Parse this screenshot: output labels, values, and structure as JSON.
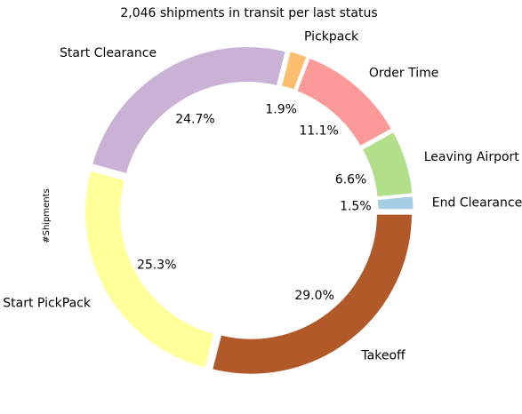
{
  "chart_data": {
    "type": "pie",
    "style": "donut",
    "title": "2,046 shipments in transit per last status",
    "ylabel": "#Shipments",
    "start_angle_deg": 0,
    "direction": "counterclockwise",
    "slices": [
      {
        "label": "End Clearance",
        "percent": 1.5,
        "percent_label": "1.5%",
        "color": "#a6cee3"
      },
      {
        "label": "Leaving Airport",
        "percent": 6.6,
        "percent_label": "6.6%",
        "color": "#b2df8a"
      },
      {
        "label": "Order Time",
        "percent": 11.1,
        "percent_label": "11.1%",
        "color": "#fb9a99"
      },
      {
        "label": "Pickpack",
        "percent": 1.9,
        "percent_label": "1.9%",
        "color": "#fdbf6f"
      },
      {
        "label": "Start Clearance",
        "percent": 24.7,
        "percent_label": "24.7%",
        "color": "#cab2d6"
      },
      {
        "label": "Start PickPack",
        "percent": 25.3,
        "percent_label": "25.3%",
        "color": "#ffff99"
      },
      {
        "label": "Takeoff",
        "percent": 29.0,
        "percent_label": "29.0%",
        "color": "#b15928"
      }
    ]
  }
}
